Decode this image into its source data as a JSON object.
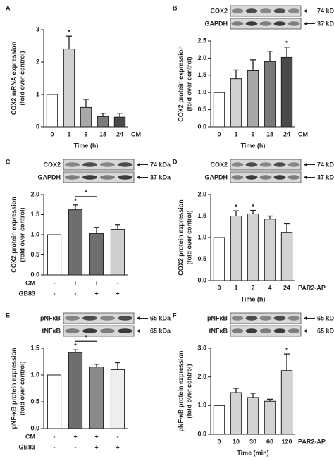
{
  "chart_data": [
    {
      "type": "bar",
      "panel": "A",
      "y_label": [
        "COX2 mRNA expression",
        "(fold over control)"
      ],
      "x_label": "Time (h)",
      "treatment_label": "CM",
      "categories": [
        "0",
        "1",
        "6",
        "18",
        "24"
      ],
      "values": [
        1,
        2.4,
        0.6,
        0.32,
        0.3
      ],
      "errors": [
        null,
        0.4,
        0.25,
        0.1,
        0.12
      ],
      "value_labels": [
        null,
        "*",
        null,
        null,
        null
      ],
      "colors": [
        "#ffffff",
        "#d0d0d0",
        "#a8a8a8",
        "#7a7a7a",
        "#4a4a4a"
      ],
      "ylim": [
        0,
        3
      ],
      "yticks": [
        0,
        1,
        2,
        3
      ]
    },
    {
      "type": "bar",
      "panel": "B",
      "y_label": [
        "COX2 protein expression",
        "(fold over control)"
      ],
      "x_label": "Time (h)",
      "treatment_label": "CM",
      "blots": [
        {
          "label": "COX2",
          "size": "74 kDa"
        },
        {
          "label": "GAPDH",
          "size": "37 kDa"
        }
      ],
      "categories": [
        "0",
        "1",
        "6",
        "18",
        "24"
      ],
      "values": [
        1,
        1.4,
        1.63,
        1.9,
        2.02
      ],
      "errors": [
        null,
        0.25,
        0.32,
        0.3,
        0.3
      ],
      "value_labels": [
        null,
        null,
        null,
        null,
        "*"
      ],
      "colors": [
        "#ffffff",
        "#d0d0d0",
        "#a8a8a8",
        "#7a7a7a",
        "#4a4a4a"
      ],
      "ylim": [
        0,
        2.5
      ],
      "yticks": [
        {
          "value": 0,
          "label": "0.0"
        },
        0.5,
        {
          "value": 1,
          "label": "1.0"
        },
        1.5,
        {
          "value": 2,
          "label": "2.0"
        },
        2.5
      ]
    },
    {
      "type": "bar",
      "panel": "C",
      "y_label": [
        "COX2 protein expression",
        "(fold over control)"
      ],
      "blots": [
        {
          "label": "COX2",
          "size": "74 kDa"
        },
        {
          "label": "GAPDH",
          "size": "37 kDa"
        }
      ],
      "conditions": [
        {
          "label": "CM",
          "signs": [
            "-",
            "+",
            "+",
            "-"
          ]
        },
        {
          "label": "GB83",
          "signs": [
            "-",
            "-",
            "+",
            "+"
          ]
        }
      ],
      "values": [
        1,
        1.62,
        1.03,
        1.13
      ],
      "errors": [
        null,
        0.12,
        0.15,
        0.12
      ],
      "value_labels": [
        null,
        "*",
        null,
        null
      ],
      "brackets": [
        {
          "from": 1,
          "to": 2,
          "label": "*"
        }
      ],
      "colors": [
        "#ffffff",
        "#6e6e6e",
        "#6e6e6e",
        "#cfcfcf"
      ],
      "ylim": [
        0,
        2
      ],
      "yticks": [
        {
          "value": 0,
          "label": "0.0"
        },
        0.5,
        {
          "value": 1,
          "label": "1.0"
        },
        1.5,
        {
          "value": 2,
          "label": "2.0"
        }
      ]
    },
    {
      "type": "bar",
      "panel": "D",
      "y_label": [
        "COX2 protein expression",
        "(fold over control)"
      ],
      "x_label": "Time (h)",
      "treatment_label": "PAR2-AP",
      "blots": [
        {
          "label": "COX2",
          "size": "74 kDa"
        },
        {
          "label": "GAPDH",
          "size": "37 kDa"
        }
      ],
      "categories": [
        "0",
        "1",
        "2",
        "4",
        "24"
      ],
      "values": [
        1,
        1.5,
        1.55,
        1.43,
        1.12
      ],
      "errors": [
        null,
        0.12,
        0.08,
        0.07,
        0.2
      ],
      "value_labels": [
        null,
        "*",
        "*",
        null,
        null
      ],
      "colors": [
        "#ffffff",
        "#d3d3d3",
        "#d3d3d3",
        "#d3d3d3",
        "#d3d3d3"
      ],
      "ylim": [
        0,
        2
      ],
      "yticks": [
        {
          "value": 0,
          "label": "0.0"
        },
        0.5,
        {
          "value": 1,
          "label": "1.0"
        },
        1.5,
        {
          "value": 2,
          "label": "2.0"
        }
      ]
    },
    {
      "type": "bar",
      "panel": "E",
      "y_label": [
        "pNF-κB protein expression",
        "(fold over control)"
      ],
      "blots": [
        {
          "label": "pNFκB",
          "size": "65 kDa"
        },
        {
          "label": "tNFκB",
          "size": "65 kDa"
        }
      ],
      "conditions": [
        {
          "label": "CM",
          "signs": [
            "-",
            "+",
            "+",
            "-"
          ]
        },
        {
          "label": "GB83",
          "signs": [
            "-",
            "-",
            "+",
            "+"
          ]
        }
      ],
      "values": [
        1,
        1.42,
        1.15,
        1.1
      ],
      "errors": [
        null,
        0.05,
        0.05,
        0.13
      ],
      "value_labels": [
        null,
        "*",
        null,
        null
      ],
      "brackets": [
        {
          "from": 1,
          "to": 2,
          "label": "*"
        }
      ],
      "colors": [
        "#ffffff",
        "#6e6e6e",
        "#8a8a8a",
        "#eeeeee"
      ],
      "ylim": [
        0,
        1.5
      ],
      "yticks": [
        {
          "value": 0,
          "label": "0.0"
        },
        0.5,
        {
          "value": 1,
          "label": "1.0"
        },
        1.5
      ]
    },
    {
      "type": "bar",
      "panel": "F",
      "y_label": [
        "pNF-κB protein expression",
        "(fold over control)"
      ],
      "x_label": "Time (min)",
      "treatment_label": "PAR2-AP",
      "blots": [
        {
          "label": "pNFκB",
          "size": "65 kDa"
        },
        {
          "label": "tNFκB",
          "size": "65 kDa"
        }
      ],
      "categories": [
        "0",
        "10",
        "30",
        "60",
        "120"
      ],
      "values": [
        1,
        1.45,
        1.28,
        1.15,
        2.22
      ],
      "errors": [
        null,
        0.15,
        0.15,
        0.07,
        0.58
      ],
      "value_labels": [
        null,
        null,
        null,
        null,
        "*"
      ],
      "colors": [
        "#ffffff",
        "#d3d3d3",
        "#d3d3d3",
        "#d3d3d3",
        "#d3d3d3"
      ],
      "ylim": [
        0,
        3
      ],
      "yticks": [
        {
          "value": 0,
          "label": "0.0"
        },
        {
          "value": 1,
          "label": "1.0"
        },
        {
          "value": 2,
          "label": "2.0"
        },
        {
          "value": 3,
          "label": "3.0"
        }
      ]
    }
  ]
}
